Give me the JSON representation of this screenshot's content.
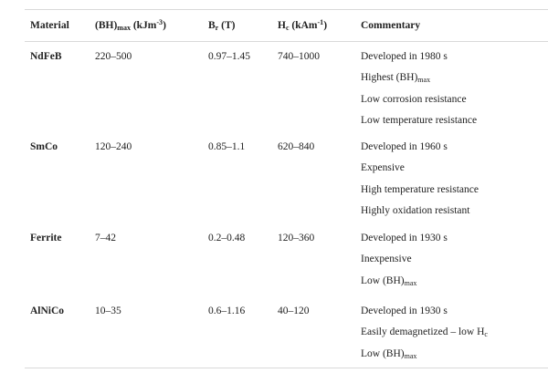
{
  "table": {
    "headers": {
      "material": "Material",
      "bh_base": "(BH)",
      "bh_sub": "max",
      "bh_unit_a": " (kJm",
      "bh_unit_sup": "-3",
      "bh_unit_b": ")",
      "br_base": "B",
      "br_sub": "r",
      "br_unit": " (T)",
      "hc_base": "H",
      "hc_sub": "c",
      "hc_unit_a": " (kAm",
      "hc_unit_sup": "-1",
      "hc_unit_b": ")",
      "commentary": "Commentary"
    },
    "rows": [
      {
        "material": "NdFeB",
        "bh_max": "220–500",
        "br": "0.97–1.45",
        "hc": "740–1000",
        "commentary": [
          {
            "text": "Developed in 1980 s",
            "sub": ""
          },
          {
            "text": "Highest (BH)",
            "sub": "max"
          },
          {
            "text": "Low corrosion resistance",
            "sub": ""
          },
          {
            "text": "Low temperature resistance",
            "sub": ""
          }
        ]
      },
      {
        "material": "SmCo",
        "bh_max": "120–240",
        "br": "0.85–1.1",
        "hc": "620–840",
        "commentary": [
          {
            "text": "Developed in 1960 s",
            "sub": ""
          },
          {
            "text": "Expensive",
            "sub": ""
          },
          {
            "text": "High temperature resistance",
            "sub": ""
          },
          {
            "text": "Highly oxidation resistant",
            "sub": ""
          }
        ]
      },
      {
        "material": "Ferrite",
        "bh_max": "7–42",
        "br": "0.2–0.48",
        "hc": "120–360",
        "commentary": [
          {
            "text": "Developed in 1930 s",
            "sub": ""
          },
          {
            "text": "Inexpensive",
            "sub": ""
          },
          {
            "text": "Low (BH)",
            "sub": "max"
          }
        ]
      },
      {
        "material": "AlNiCo",
        "bh_max": "10–35",
        "br": "0.6–1.16",
        "hc": "40–120",
        "commentary": [
          {
            "text": "Developed in 1930 s",
            "sub": ""
          },
          {
            "text": "Easily demagnetized – low H",
            "sub": "c"
          },
          {
            "text": "Low (BH)",
            "sub": "max"
          }
        ]
      }
    ]
  }
}
